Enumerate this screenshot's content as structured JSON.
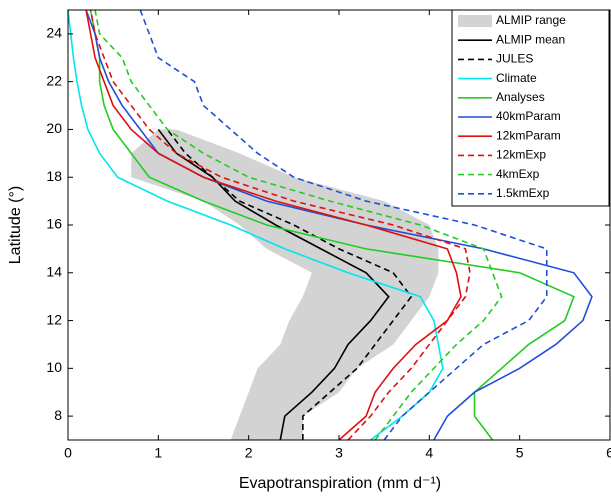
{
  "chart_data": {
    "type": "line",
    "xlabel": "Evapotranspiration (mm d⁻¹)",
    "ylabel": "Latitude (°)",
    "xlim": [
      0,
      6
    ],
    "xticks": [
      0,
      1,
      2,
      3,
      4,
      5,
      6
    ],
    "ylim": [
      7,
      25
    ],
    "yticks": [
      8,
      10,
      12,
      14,
      16,
      18,
      20,
      22,
      24
    ],
    "legend": "upper right",
    "y": [
      7,
      8,
      9,
      10,
      11,
      12,
      13,
      14,
      15,
      16,
      17,
      18,
      19,
      20,
      21,
      22,
      23,
      24,
      25
    ],
    "range": {
      "name": "ALMIP range",
      "color": "#d3d3d3",
      "low": [
        1.8,
        1.9,
        2.0,
        2.1,
        2.35,
        2.45,
        2.6,
        2.7,
        2.2,
        1.9,
        1.5,
        0.7,
        0.7,
        1.0,
        null,
        null,
        null,
        null,
        null
      ],
      "high": [
        2.6,
        2.6,
        3.0,
        3.2,
        3.6,
        3.8,
        4.0,
        4.1,
        4.1,
        4.0,
        3.5,
        2.5,
        1.9,
        1.2,
        null,
        null,
        null,
        null,
        null
      ]
    },
    "series": [
      {
        "name": "ALMIP mean",
        "color": "#000000",
        "dash": "solid",
        "values": [
          2.35,
          2.4,
          2.7,
          2.95,
          3.1,
          3.35,
          3.55,
          3.3,
          2.8,
          2.3,
          1.85,
          1.6,
          1.2,
          1.0,
          null,
          null,
          null,
          null,
          null
        ]
      },
      {
        "name": "JULES",
        "color": "#000000",
        "dash": "dashed",
        "values": [
          2.6,
          2.6,
          2.9,
          3.2,
          3.4,
          3.6,
          3.8,
          3.6,
          3.0,
          2.5,
          1.9,
          1.6,
          1.3,
          1.1,
          null,
          null,
          null,
          null,
          null
        ]
      },
      {
        "name": "Climate",
        "color": "#00e5ee",
        "dash": "solid",
        "values": [
          3.35,
          3.7,
          4.0,
          4.15,
          4.1,
          4.05,
          3.9,
          3.1,
          2.4,
          1.8,
          1.1,
          0.55,
          0.35,
          0.22,
          0.15,
          0.1,
          0.06,
          0.03,
          0
        ]
      },
      {
        "name": "Analyses",
        "color": "#22cc22",
        "dash": "solid",
        "values": [
          4.7,
          4.5,
          4.5,
          4.8,
          5.1,
          5.5,
          5.6,
          5.0,
          3.3,
          2.2,
          1.5,
          0.9,
          0.7,
          0.5,
          0.4,
          0.35,
          0.35,
          0.3,
          0.25
        ]
      },
      {
        "name": "40kmParam",
        "color": "#1f4fd8",
        "dash": "solid",
        "values": [
          4.05,
          4.2,
          4.5,
          5.0,
          5.4,
          5.7,
          5.8,
          5.6,
          4.6,
          3.3,
          2.2,
          1.5,
          1.0,
          0.8,
          0.6,
          0.45,
          0.35,
          0.3,
          0.2
        ]
      },
      {
        "name": "12kmParam",
        "color": "#e01010",
        "dash": "solid",
        "values": [
          3.0,
          3.3,
          3.4,
          3.6,
          3.85,
          4.2,
          4.35,
          4.3,
          4.2,
          3.3,
          2.3,
          1.5,
          1.0,
          0.7,
          0.5,
          0.4,
          0.3,
          0.25,
          0.2
        ]
      },
      {
        "name": "12kmExp",
        "color": "#e01010",
        "dash": "dashed",
        "values": [
          3.1,
          3.35,
          3.55,
          3.8,
          4.0,
          4.2,
          4.4,
          4.45,
          4.4,
          3.6,
          2.5,
          1.7,
          1.2,
          0.9,
          0.7,
          0.5,
          0.4,
          0.3,
          0.25
        ]
      },
      {
        "name": "4kmExp",
        "color": "#22cc22",
        "dash": "dashed",
        "values": [
          3.4,
          3.6,
          3.8,
          4.05,
          4.3,
          4.6,
          4.8,
          4.7,
          4.6,
          3.9,
          2.9,
          2.0,
          1.5,
          1.1,
          0.9,
          0.7,
          0.6,
          0.35,
          0.3
        ]
      },
      {
        "name": "1.5kmExp",
        "color": "#1f4fd8",
        "dash": "dashed",
        "values": [
          3.5,
          3.7,
          4.0,
          4.3,
          4.6,
          5.1,
          5.3,
          5.3,
          5.3,
          4.5,
          3.3,
          2.5,
          2.1,
          1.8,
          1.5,
          1.4,
          1.0,
          0.9,
          0.8
        ]
      }
    ]
  }
}
